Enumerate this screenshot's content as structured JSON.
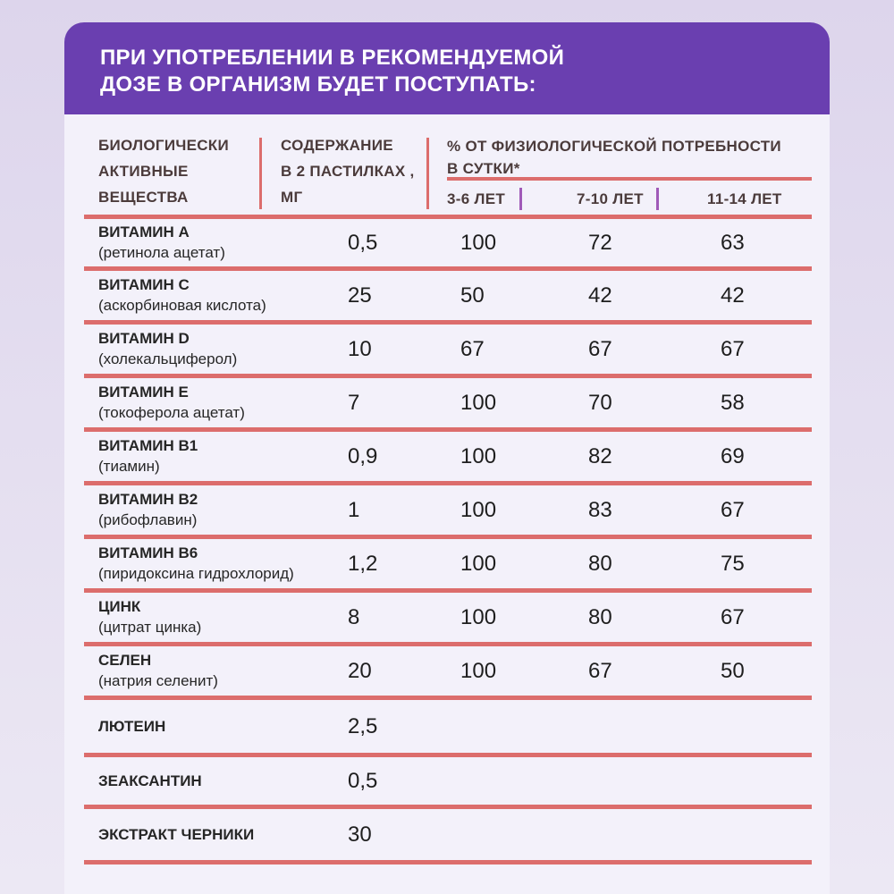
{
  "title": {
    "line1": "ПРИ УПОТРЕБЛЕНИИ В РЕКОМЕНДУЕМОЙ",
    "line2": "ДОЗЕ В ОРГАНИЗМ БУДЕТ ПОСТУПАТЬ:"
  },
  "header": {
    "col1": [
      "БИОЛОГИЧЕСКИ",
      "АКТИВНЫЕ",
      "ВЕЩЕСТВА"
    ],
    "col2": [
      "СОДЕРЖАНИЕ",
      "В 2 ПАСТИЛКАХ ,",
      "МГ"
    ],
    "col3": [
      "% ОТ ФИЗИОЛОГИЧЕСКОЙ ПОТРЕБНОСТИ",
      "В СУТКИ*"
    ],
    "ages": [
      "3-6 ЛЕТ",
      "7-10 ЛЕТ",
      "11-14 ЛЕТ"
    ]
  },
  "rows": [
    {
      "name": "ВИТАМИН А",
      "sub": "(ретинола ацетат)",
      "mg": "0,5",
      "a": "100",
      "b": "72",
      "c": "63"
    },
    {
      "name": "ВИТАМИН С",
      "sub": "(аскорбиновая кислота)",
      "mg": "25",
      "a": "50",
      "b": "42",
      "c": "42"
    },
    {
      "name": "ВИТАМИН D",
      "sub": "(холекальциферол)",
      "mg": "10",
      "a": "67",
      "b": "67",
      "c": "67"
    },
    {
      "name": "ВИТАМИН Е",
      "sub": "(токоферола ацетат)",
      "mg": "7",
      "a": "100",
      "b": "70",
      "c": "58"
    },
    {
      "name": "ВИТАМИН В1",
      "sub": "(тиамин)",
      "mg": "0,9",
      "a": "100",
      "b": "82",
      "c": "69"
    },
    {
      "name": "ВИТАМИН В2",
      "sub": "(рибофлавин)",
      "mg": "1",
      "a": "100",
      "b": "83",
      "c": "67"
    },
    {
      "name": "ВИТАМИН В6",
      "sub": "(пиридоксина гидрохлорид)",
      "mg": "1,2",
      "a": "100",
      "b": "80",
      "c": "75"
    },
    {
      "name": "ЦИНК",
      "sub": "(цитрат цинка)",
      "mg": "8",
      "a": "100",
      "b": "80",
      "c": "67"
    },
    {
      "name": "СЕЛЕН",
      "sub": "(натрия селенит)",
      "mg": "20",
      "a": "100",
      "b": "67",
      "c": "50"
    },
    {
      "name": "ЛЮТЕИН",
      "sub": "",
      "mg": "2,5",
      "a": "",
      "b": "",
      "c": ""
    },
    {
      "name": "ЗЕАКСАНТИН",
      "sub": "",
      "mg": "0,5",
      "a": "",
      "b": "",
      "c": ""
    },
    {
      "name": "ЭКСТРАКТ ЧЕРНИКИ",
      "sub": "",
      "mg": "30",
      "a": "",
      "b": "",
      "c": ""
    }
  ],
  "colors": {
    "banner": "#6a3fb0",
    "divider": "#dc6d6c",
    "accent_bar": "#a05ab8",
    "card": "#f3f1fa"
  }
}
